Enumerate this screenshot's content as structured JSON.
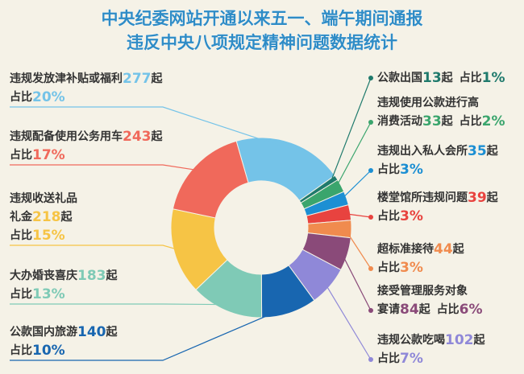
{
  "chart_data": {
    "type": "pie",
    "donut": true,
    "title": [
      "中央纪委网站开通以来五一、端午期间通报",
      "违反中央八项规定精神问题数据统计"
    ],
    "categories": [
      [
        "违规发放津补贴或福利"
      ],
      [
        "公款出国"
      ],
      [
        "违规使用公款进行高",
        "消费活动"
      ],
      [
        "违规出入私人会所"
      ],
      [
        "楼堂馆所违规问题"
      ],
      [
        "超标准接待"
      ],
      [
        "接受管理服务对象",
        "宴请"
      ],
      [
        "违规公款吃喝"
      ],
      [
        "公款国内旅游"
      ],
      [
        "大办婚丧喜庆"
      ],
      [
        "违规收送礼品",
        "礼金"
      ],
      [
        "违规配备使用公务用车"
      ]
    ],
    "values": [
      277,
      13,
      33,
      35,
      39,
      44,
      84,
      102,
      140,
      183,
      218,
      243
    ],
    "share_labels": [
      "20%",
      "1%",
      "2%",
      "3%",
      "3%",
      "3%",
      "6%",
      "7%",
      "10%",
      "13%",
      "15%",
      "17%"
    ],
    "count_unit": "起",
    "share_prefix": "占比",
    "colors": [
      "#74c3e8",
      "#1f7a6c",
      "#3aa56d",
      "#1c8fd3",
      "#e8433f",
      "#f08b4e",
      "#8a4a79",
      "#8f88d8",
      "#1866b0",
      "#7fcab6",
      "#f6c445",
      "#f0695b"
    ]
  }
}
